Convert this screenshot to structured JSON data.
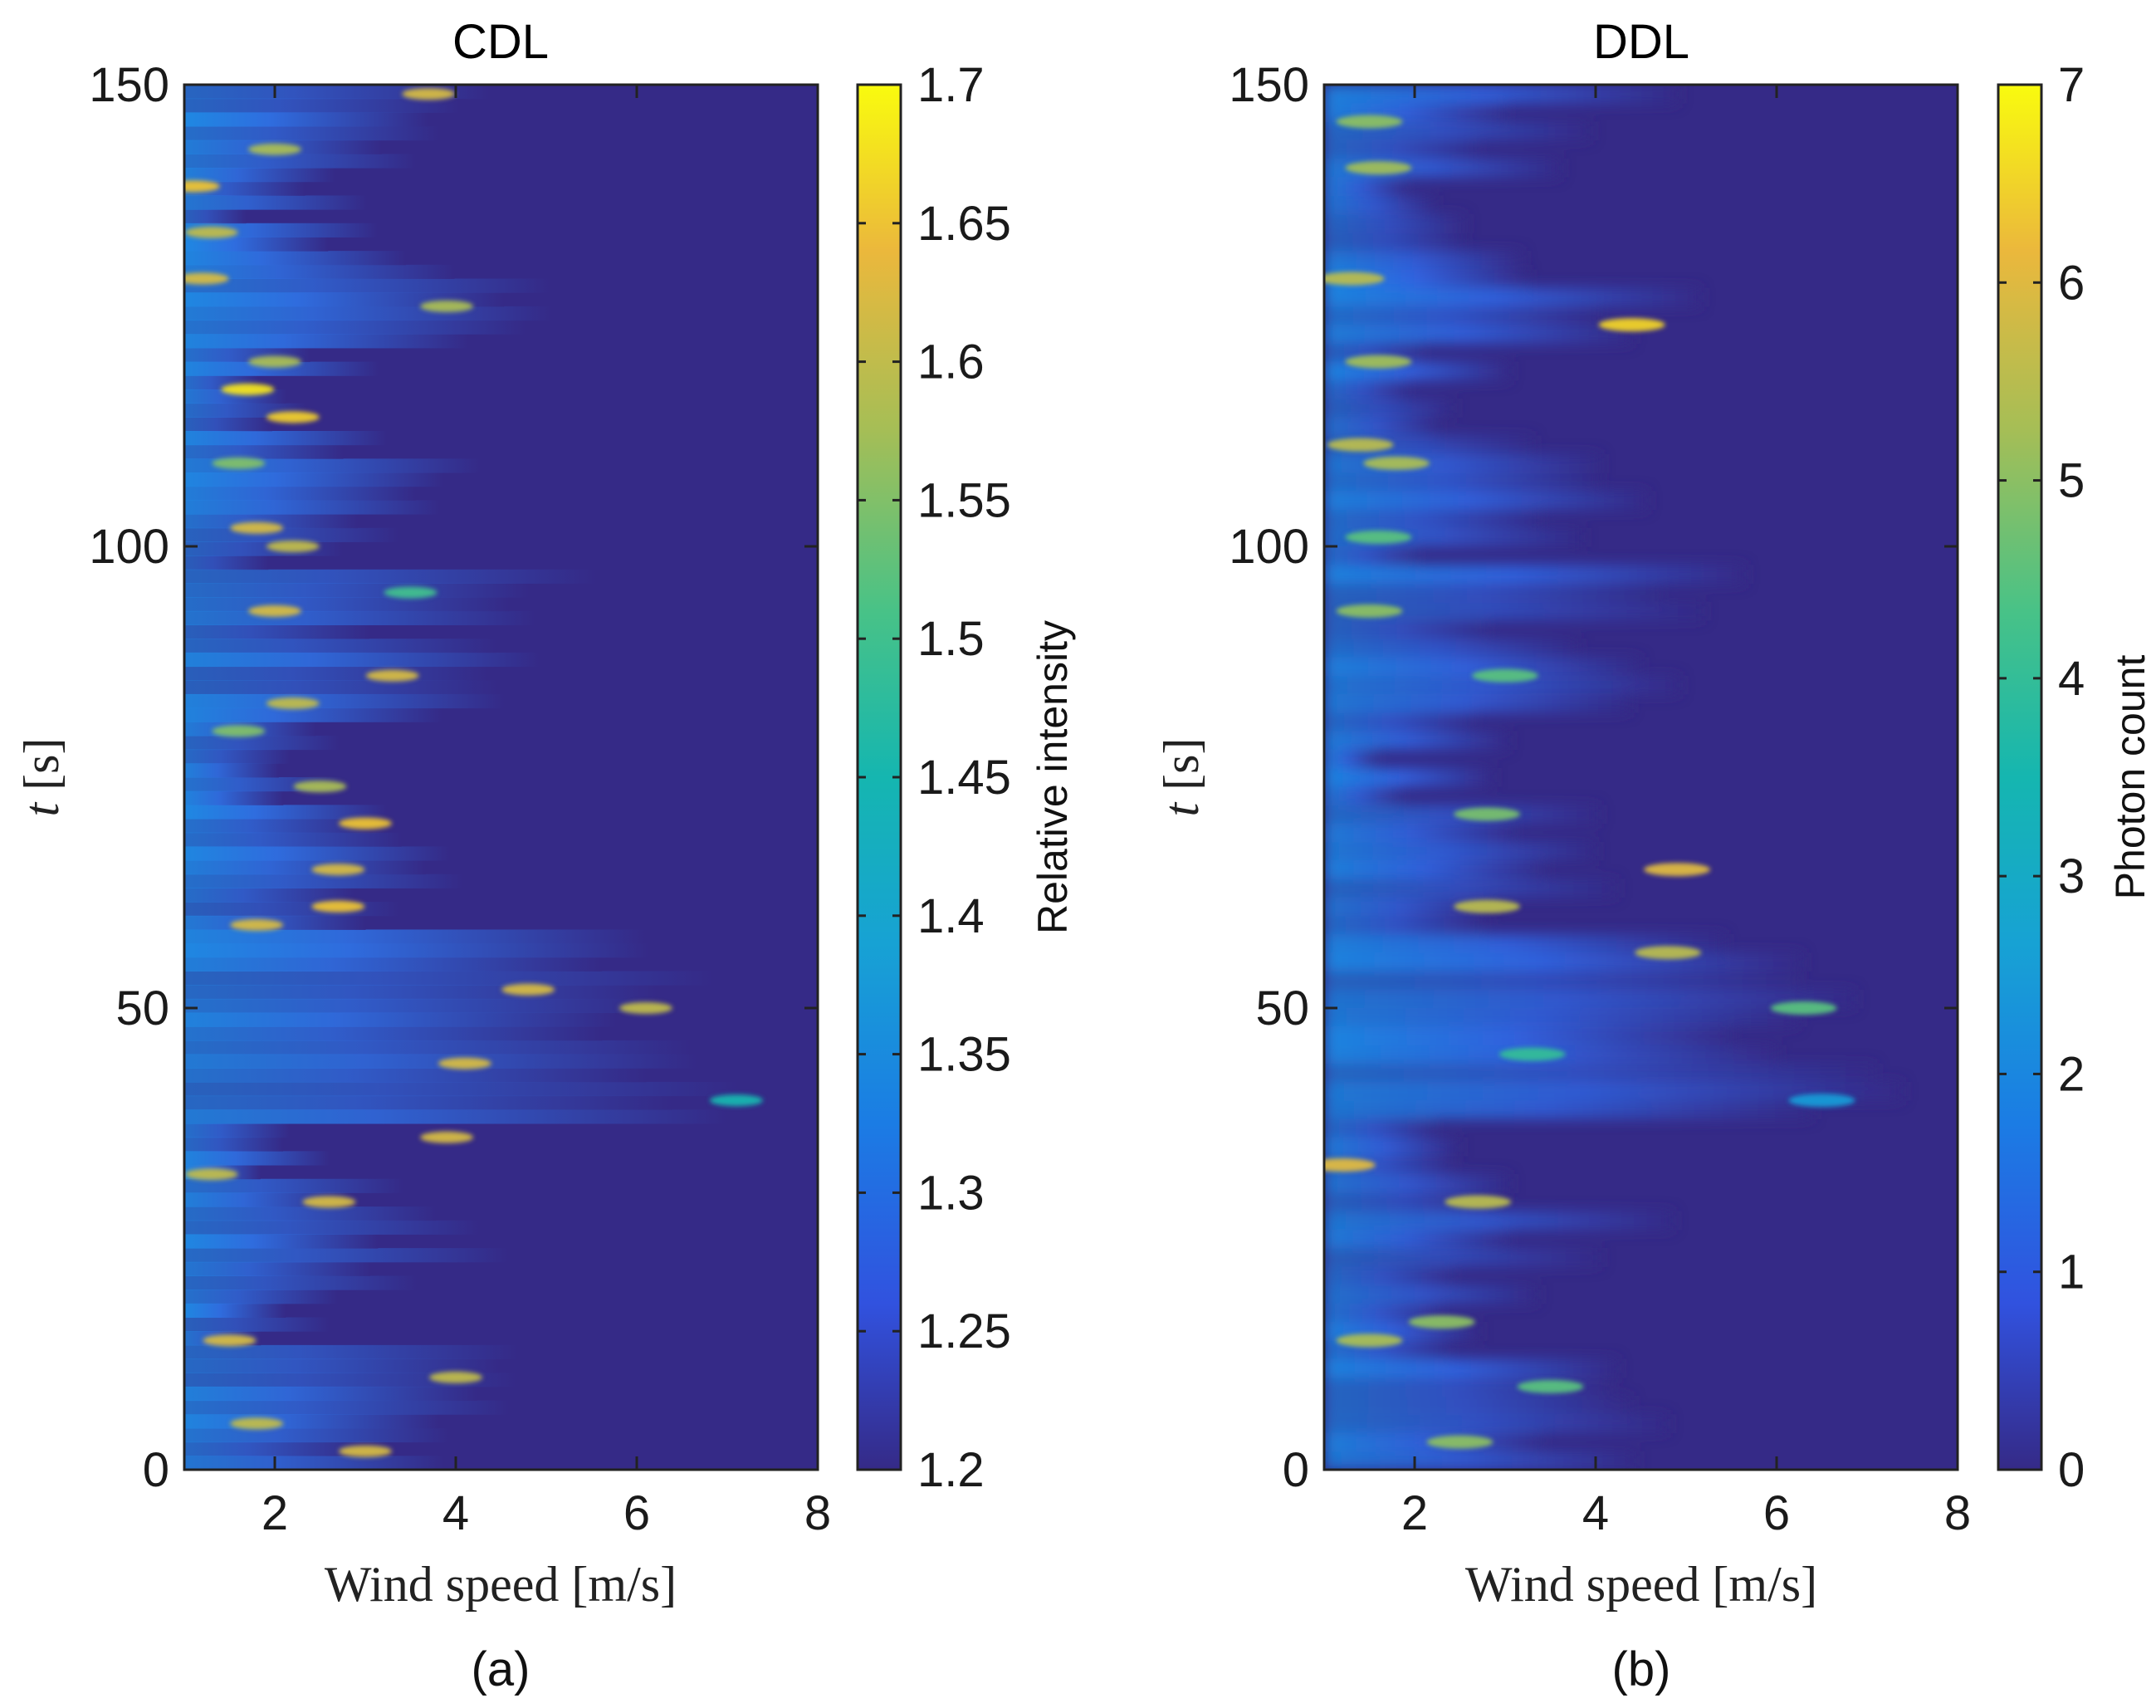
{
  "chart_data": [
    {
      "type": "heatmap",
      "title": "CDL",
      "subfigure_label": "(a)",
      "xlabel": "Wind speed [m/s]",
      "ylabel_symbol": "t",
      "ylabel_unit": "[s]",
      "xlim": [
        1,
        8
      ],
      "ylim": [
        0,
        150
      ],
      "xticks": [
        "2",
        "4",
        "6",
        "8"
      ],
      "yticks": [
        "0",
        "50",
        "100",
        "150"
      ],
      "colorbar": {
        "label": "Relative intensity",
        "range": [
          1.2,
          1.7
        ],
        "ticks": [
          "1.2",
          "1.25",
          "1.3",
          "1.35",
          "1.4",
          "1.45",
          "1.5",
          "1.55",
          "1.6",
          "1.65",
          "1.7"
        ]
      },
      "features": [
        {
          "t": 149,
          "speed": 3.7,
          "value": 1.62
        },
        {
          "t": 143,
          "speed": 2.0,
          "value": 1.58
        },
        {
          "t": 139,
          "speed": 1.1,
          "value": 1.65
        },
        {
          "t": 134,
          "speed": 1.3,
          "value": 1.6
        },
        {
          "t": 129,
          "speed": 1.2,
          "value": 1.62
        },
        {
          "t": 126,
          "speed": 3.9,
          "value": 1.58
        },
        {
          "t": 120,
          "speed": 2.0,
          "value": 1.58
        },
        {
          "t": 117,
          "speed": 1.7,
          "value": 1.68
        },
        {
          "t": 114,
          "speed": 2.2,
          "value": 1.66
        },
        {
          "t": 109,
          "speed": 1.6,
          "value": 1.55
        },
        {
          "t": 102,
          "speed": 1.8,
          "value": 1.62
        },
        {
          "t": 100,
          "speed": 2.2,
          "value": 1.6
        },
        {
          "t": 95,
          "speed": 3.5,
          "value": 1.5
        },
        {
          "t": 93,
          "speed": 2.0,
          "value": 1.62
        },
        {
          "t": 86,
          "speed": 3.3,
          "value": 1.62
        },
        {
          "t": 83,
          "speed": 2.2,
          "value": 1.6
        },
        {
          "t": 80,
          "speed": 1.6,
          "value": 1.55
        },
        {
          "t": 74,
          "speed": 2.5,
          "value": 1.58
        },
        {
          "t": 70,
          "speed": 3.0,
          "value": 1.65
        },
        {
          "t": 65,
          "speed": 2.7,
          "value": 1.62
        },
        {
          "t": 61,
          "speed": 2.7,
          "value": 1.65
        },
        {
          "t": 59,
          "speed": 1.8,
          "value": 1.62
        },
        {
          "t": 52,
          "speed": 4.8,
          "value": 1.62
        },
        {
          "t": 50,
          "speed": 6.1,
          "value": 1.6
        },
        {
          "t": 44,
          "speed": 4.1,
          "value": 1.62
        },
        {
          "t": 40,
          "speed": 7.1,
          "value": 1.45
        },
        {
          "t": 36,
          "speed": 3.9,
          "value": 1.62
        },
        {
          "t": 32,
          "speed": 1.3,
          "value": 1.6
        },
        {
          "t": 29,
          "speed": 2.6,
          "value": 1.62
        },
        {
          "t": 14,
          "speed": 1.5,
          "value": 1.62
        },
        {
          "t": 10,
          "speed": 4.0,
          "value": 1.6
        },
        {
          "t": 5,
          "speed": 1.8,
          "value": 1.6
        },
        {
          "t": 2,
          "speed": 3.0,
          "value": 1.62
        }
      ]
    },
    {
      "type": "heatmap",
      "title": "DDL",
      "subfigure_label": "(b)",
      "xlabel": "Wind speed [m/s]",
      "ylabel_symbol": "t",
      "ylabel_unit": "[s]",
      "xlim": [
        1,
        8
      ],
      "ylim": [
        0,
        150
      ],
      "xticks": [
        "2",
        "4",
        "6",
        "8"
      ],
      "yticks": [
        "0",
        "50",
        "100",
        "150"
      ],
      "colorbar": {
        "label": "Photon count",
        "range": [
          0,
          7
        ],
        "ticks": [
          "0",
          "1",
          "2",
          "3",
          "4",
          "5",
          "6",
          "7"
        ]
      },
      "features": [
        {
          "t": 146,
          "speed": 1.5,
          "value": 5.0
        },
        {
          "t": 141,
          "speed": 1.6,
          "value": 5.2
        },
        {
          "t": 129,
          "speed": 1.3,
          "value": 5.5
        },
        {
          "t": 124,
          "speed": 4.4,
          "value": 6.5
        },
        {
          "t": 120,
          "speed": 1.6,
          "value": 5.2
        },
        {
          "t": 111,
          "speed": 1.4,
          "value": 5.5
        },
        {
          "t": 109,
          "speed": 1.8,
          "value": 5.3
        },
        {
          "t": 101,
          "speed": 1.6,
          "value": 4.5
        },
        {
          "t": 93,
          "speed": 1.5,
          "value": 5.0
        },
        {
          "t": 86,
          "speed": 3.0,
          "value": 4.5
        },
        {
          "t": 71,
          "speed": 2.8,
          "value": 4.8
        },
        {
          "t": 65,
          "speed": 4.9,
          "value": 6.0
        },
        {
          "t": 61,
          "speed": 2.8,
          "value": 5.5
        },
        {
          "t": 56,
          "speed": 4.8,
          "value": 5.5
        },
        {
          "t": 50,
          "speed": 6.3,
          "value": 4.5
        },
        {
          "t": 45,
          "speed": 3.3,
          "value": 4.0
        },
        {
          "t": 40,
          "speed": 6.5,
          "value": 2.5
        },
        {
          "t": 33,
          "speed": 1.2,
          "value": 6.0
        },
        {
          "t": 29,
          "speed": 2.7,
          "value": 5.5
        },
        {
          "t": 16,
          "speed": 2.3,
          "value": 5.0
        },
        {
          "t": 14,
          "speed": 1.5,
          "value": 5.3
        },
        {
          "t": 9,
          "speed": 3.5,
          "value": 4.5
        },
        {
          "t": 3,
          "speed": 2.5,
          "value": 5.0
        }
      ]
    }
  ]
}
